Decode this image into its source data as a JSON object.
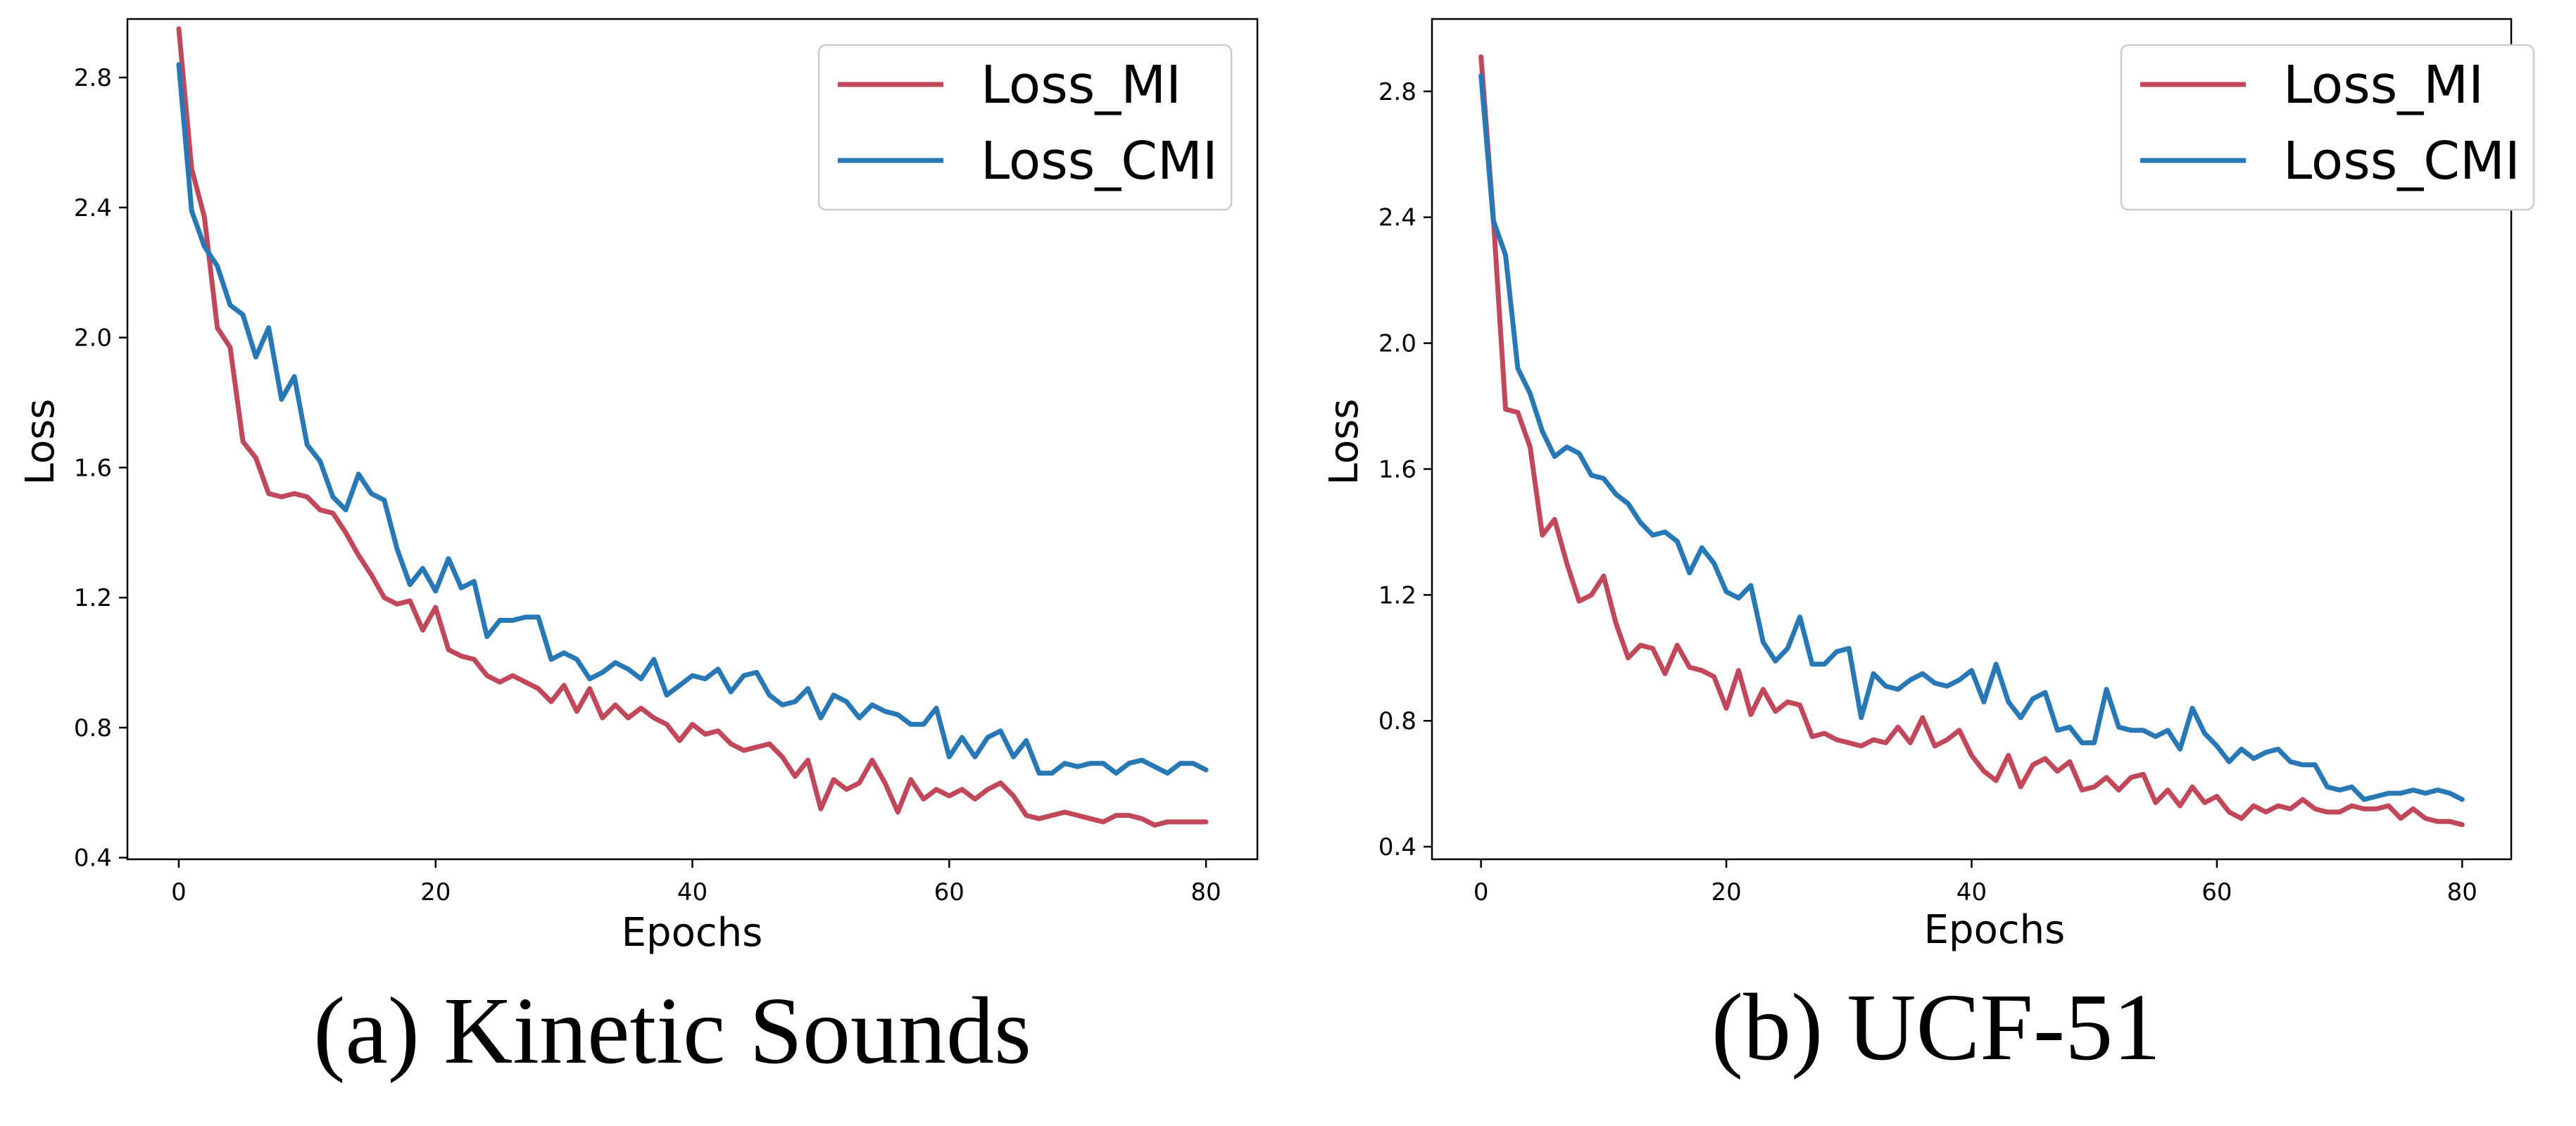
{
  "colors": {
    "loss_mi": "#c0485a",
    "loss_cmi": "#2878b5",
    "axis": "#000000"
  },
  "chart_data": [
    {
      "type": "line",
      "caption": "(a) Kinetic Sounds",
      "xlabel": "Epochs",
      "ylabel": "Loss",
      "xlim": [
        -4,
        84
      ],
      "ylim": [
        0.395,
        2.98
      ],
      "xticks": [
        0,
        20,
        40,
        60,
        80
      ],
      "yticks": [
        0.4,
        0.8,
        1.2,
        1.6,
        2.0,
        2.4,
        2.8
      ],
      "ytick_labels": [
        "0.4",
        "0.8",
        "1.2",
        "1.6",
        "2.0",
        "2.4",
        "2.8"
      ],
      "xtick_labels": [
        "0",
        "20",
        "40",
        "60",
        "80"
      ],
      "grid": false,
      "legend": "top-right",
      "series": [
        {
          "name": "Loss_MI",
          "color": "#c0485a",
          "values": [
            2.95,
            2.52,
            2.37,
            2.03,
            1.97,
            1.68,
            1.63,
            1.52,
            1.51,
            1.52,
            1.51,
            1.47,
            1.46,
            1.4,
            1.33,
            1.27,
            1.2,
            1.18,
            1.19,
            1.1,
            1.17,
            1.04,
            1.02,
            1.01,
            0.96,
            0.94,
            0.96,
            0.94,
            0.92,
            0.88,
            0.93,
            0.85,
            0.92,
            0.83,
            0.87,
            0.83,
            0.86,
            0.83,
            0.81,
            0.76,
            0.81,
            0.78,
            0.79,
            0.75,
            0.73,
            0.74,
            0.75,
            0.71,
            0.65,
            0.7,
            0.55,
            0.64,
            0.61,
            0.63,
            0.7,
            0.63,
            0.54,
            0.64,
            0.58,
            0.61,
            0.59,
            0.61,
            0.58,
            0.61,
            0.63,
            0.59,
            0.53,
            0.52,
            0.53,
            0.54,
            0.53,
            0.52,
            0.51,
            0.53,
            0.53,
            0.52,
            0.5,
            0.51,
            0.51,
            0.51,
            0.51
          ]
        },
        {
          "name": "Loss_CMI",
          "color": "#2878b5",
          "values": [
            2.84,
            2.39,
            2.28,
            2.22,
            2.1,
            2.07,
            1.94,
            2.03,
            1.81,
            1.88,
            1.67,
            1.62,
            1.51,
            1.47,
            1.58,
            1.52,
            1.5,
            1.35,
            1.24,
            1.29,
            1.22,
            1.32,
            1.23,
            1.25,
            1.08,
            1.13,
            1.13,
            1.14,
            1.14,
            1.01,
            1.03,
            1.01,
            0.95,
            0.97,
            1.0,
            0.98,
            0.95,
            1.01,
            0.9,
            0.93,
            0.96,
            0.95,
            0.98,
            0.91,
            0.96,
            0.97,
            0.9,
            0.87,
            0.88,
            0.92,
            0.83,
            0.9,
            0.88,
            0.83,
            0.87,
            0.85,
            0.84,
            0.81,
            0.81,
            0.86,
            0.71,
            0.77,
            0.71,
            0.77,
            0.79,
            0.71,
            0.76,
            0.66,
            0.66,
            0.69,
            0.68,
            0.69,
            0.69,
            0.66,
            0.69,
            0.7,
            0.68,
            0.66,
            0.69,
            0.69,
            0.67
          ]
        }
      ]
    },
    {
      "type": "line",
      "caption": "(b) UCF-51",
      "xlabel": "Epochs",
      "ylabel": "Loss",
      "xlim": [
        -4,
        84
      ],
      "ylim": [
        0.36,
        3.03
      ],
      "xticks": [
        0,
        20,
        40,
        60,
        80
      ],
      "yticks": [
        0.4,
        0.8,
        1.2,
        1.6,
        2.0,
        2.4,
        2.8
      ],
      "ytick_labels": [
        "0.4",
        "0.8",
        "1.2",
        "1.6",
        "2.0",
        "2.4",
        "2.8"
      ],
      "xtick_labels": [
        "0",
        "20",
        "40",
        "60",
        "80"
      ],
      "grid": false,
      "legend": "top-right",
      "series": [
        {
          "name": "Loss_MI",
          "color": "#c0485a",
          "values": [
            2.91,
            2.4,
            1.79,
            1.78,
            1.67,
            1.39,
            1.44,
            1.3,
            1.18,
            1.2,
            1.26,
            1.11,
            1.0,
            1.04,
            1.03,
            0.95,
            1.04,
            0.97,
            0.96,
            0.94,
            0.84,
            0.96,
            0.82,
            0.9,
            0.83,
            0.86,
            0.85,
            0.75,
            0.76,
            0.74,
            0.73,
            0.72,
            0.74,
            0.73,
            0.78,
            0.73,
            0.81,
            0.72,
            0.74,
            0.77,
            0.69,
            0.64,
            0.61,
            0.69,
            0.59,
            0.66,
            0.68,
            0.64,
            0.67,
            0.58,
            0.59,
            0.62,
            0.58,
            0.62,
            0.63,
            0.54,
            0.58,
            0.53,
            0.59,
            0.54,
            0.56,
            0.51,
            0.49,
            0.53,
            0.51,
            0.53,
            0.52,
            0.55,
            0.52,
            0.51,
            0.51,
            0.53,
            0.52,
            0.52,
            0.53,
            0.49,
            0.52,
            0.49,
            0.48,
            0.48,
            0.47
          ]
        },
        {
          "name": "Loss_CMI",
          "color": "#2878b5",
          "values": [
            2.85,
            2.39,
            2.28,
            1.92,
            1.84,
            1.72,
            1.64,
            1.67,
            1.65,
            1.58,
            1.57,
            1.52,
            1.49,
            1.43,
            1.39,
            1.4,
            1.37,
            1.27,
            1.35,
            1.3,
            1.21,
            1.19,
            1.23,
            1.05,
            0.99,
            1.03,
            1.13,
            0.98,
            0.98,
            1.02,
            1.03,
            0.81,
            0.95,
            0.91,
            0.9,
            0.93,
            0.95,
            0.92,
            0.91,
            0.93,
            0.96,
            0.86,
            0.98,
            0.86,
            0.81,
            0.87,
            0.89,
            0.77,
            0.78,
            0.73,
            0.73,
            0.9,
            0.78,
            0.77,
            0.77,
            0.75,
            0.77,
            0.71,
            0.84,
            0.76,
            0.72,
            0.67,
            0.71,
            0.68,
            0.7,
            0.71,
            0.67,
            0.66,
            0.66,
            0.59,
            0.58,
            0.59,
            0.55,
            0.56,
            0.57,
            0.57,
            0.58,
            0.57,
            0.58,
            0.57,
            0.55
          ]
        }
      ]
    }
  ]
}
